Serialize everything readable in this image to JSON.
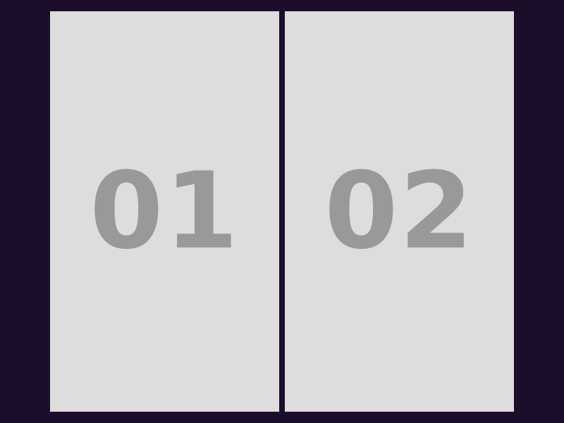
{
  "panels": [
    {
      "label": "01"
    },
    {
      "label": "02"
    }
  ],
  "colors": {
    "background": "#1c0e2a",
    "panel": "#dddddd",
    "number": "#999999"
  }
}
